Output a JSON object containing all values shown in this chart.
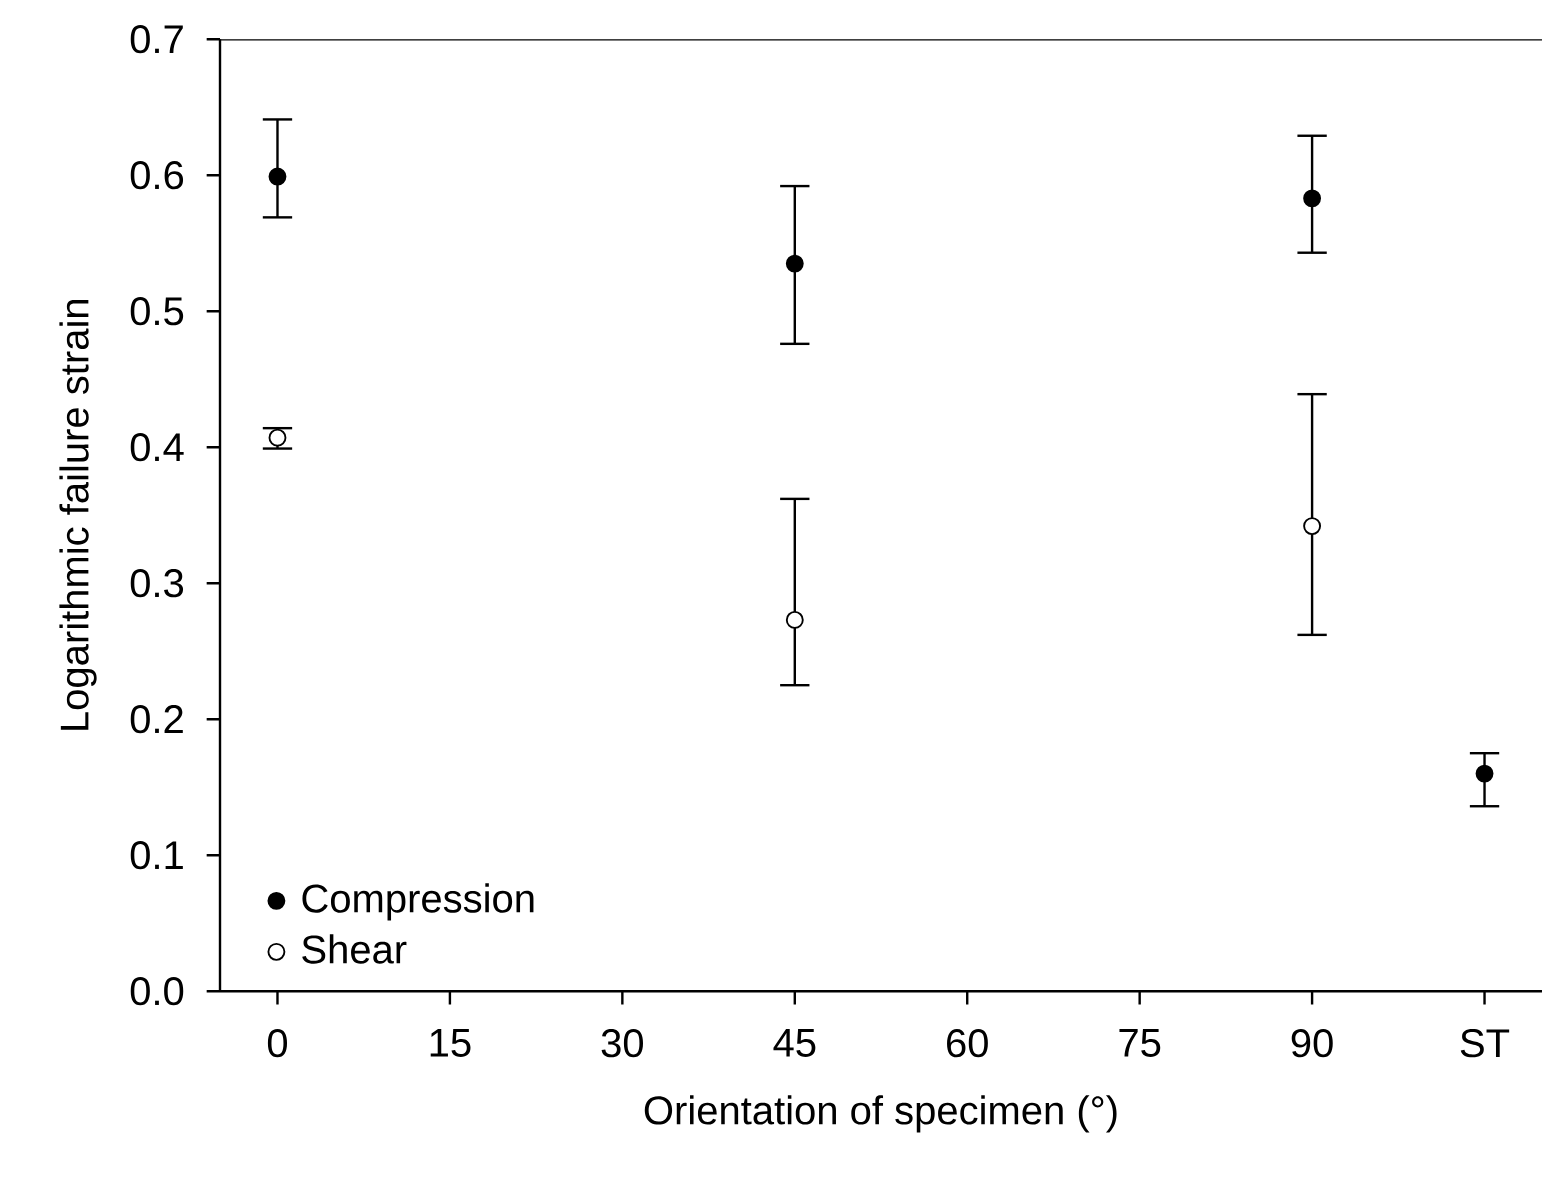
{
  "chart_data": {
    "type": "scatter",
    "xlabel": "Orientation of specimen (°)",
    "ylabel": "Logarithmic failure strain",
    "xlim": [
      -5,
      110
    ],
    "ylim": [
      0,
      0.7
    ],
    "xticks": [
      0,
      15,
      30,
      45,
      60,
      75,
      90,
      {
        "value": 105,
        "label": "ST"
      }
    ],
    "yticks": [
      {
        "value": 0,
        "label": "0.0"
      },
      0.1,
      0.2,
      0.3,
      0.4,
      0.5,
      0.6,
      0.7
    ],
    "marker": "circle",
    "legend": "bottom left",
    "series": [
      {
        "name": "Compression",
        "color": "#000000",
        "x": [
          0,
          45,
          90,
          105
        ],
        "values": [
          0.599,
          0.535,
          0.583,
          0.16
        ],
        "errors": [
          [
            0.569,
            0.641
          ],
          [
            0.476,
            0.592
          ],
          [
            0.543,
            0.629
          ],
          [
            0.136,
            0.175
          ]
        ]
      },
      {
        "name": "Shear",
        "color": "#ffffff",
        "x": [
          0,
          45,
          90
        ],
        "values": [
          0.407,
          0.273,
          0.342
        ],
        "errors": [
          [
            0.399,
            0.414
          ],
          [
            0.225,
            0.362
          ],
          [
            0.262,
            0.439
          ]
        ]
      }
    ]
  }
}
